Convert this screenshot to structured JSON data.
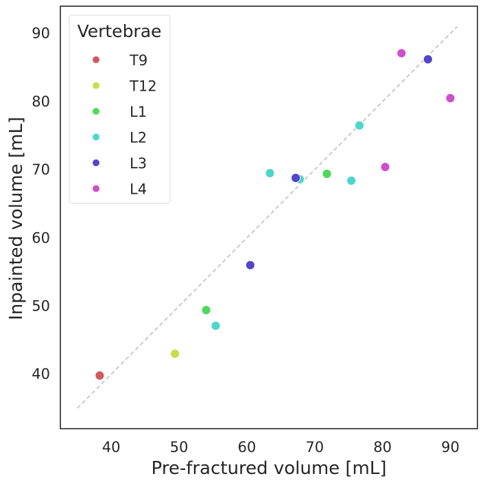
{
  "chart_data": {
    "type": "scatter",
    "xlabel": "Pre-fractured volume [mL]",
    "ylabel": "Inpainted volume [mL]",
    "xlim": [
      32.5,
      94
    ],
    "ylim": [
      32,
      94
    ],
    "xticks": [
      40,
      50,
      60,
      70,
      80,
      90
    ],
    "yticks": [
      40,
      50,
      60,
      70,
      80,
      90
    ],
    "grid": false,
    "legend_position": "top-left",
    "legend_title": "Vertebrae",
    "reference_line": {
      "style": "dashed",
      "color": "#bdbdbd",
      "x": [
        35,
        91
      ],
      "y": [
        35,
        91
      ]
    },
    "series": [
      {
        "name": "T9",
        "color": "#d05a5d",
        "points": [
          [
            38.3,
            39.8
          ]
        ]
      },
      {
        "name": "T12",
        "color": "#c9dc4b",
        "points": [
          [
            49.4,
            43.0
          ]
        ]
      },
      {
        "name": "L1",
        "color": "#4fd85a",
        "points": [
          [
            54.0,
            49.4
          ],
          [
            71.8,
            69.4
          ]
        ]
      },
      {
        "name": "L2",
        "color": "#4fd6cb",
        "points": [
          [
            55.4,
            47.1
          ],
          [
            63.4,
            69.5
          ],
          [
            67.8,
            68.6
          ],
          [
            75.4,
            68.4
          ],
          [
            76.6,
            76.5
          ]
        ]
      },
      {
        "name": "L3",
        "color": "#5446c8",
        "points": [
          [
            60.5,
            56.0
          ],
          [
            67.2,
            68.8
          ],
          [
            86.7,
            86.2
          ]
        ]
      },
      {
        "name": "L4",
        "color": "#cf4fcb",
        "points": [
          [
            80.4,
            70.4
          ],
          [
            82.8,
            87.1
          ],
          [
            90.0,
            80.5
          ]
        ]
      }
    ]
  }
}
